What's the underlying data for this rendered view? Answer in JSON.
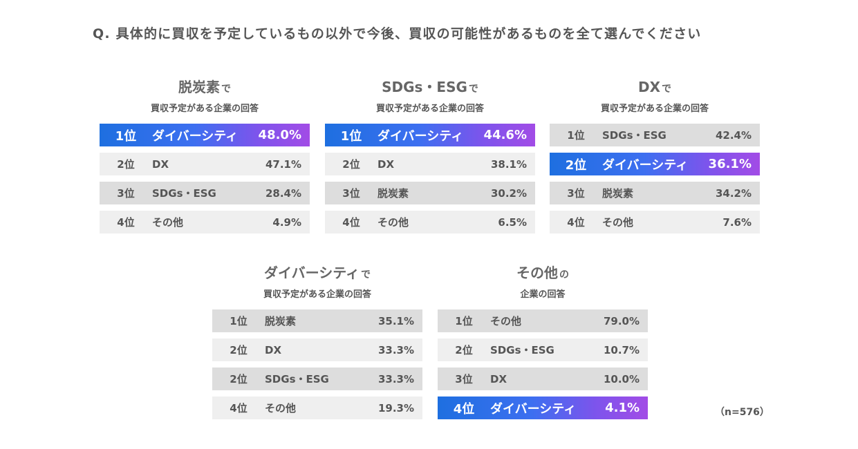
{
  "question": "Q. 具体的に買収を予定しているもの以外で今後、買収の可能性があるものを全て選んでください",
  "note": "（n=576）",
  "highlight_item": "ダイバーシティ",
  "chart_data": [
    {
      "type": "table",
      "title": "脱炭素",
      "title_suffix": "で",
      "subtitle": "買収予定がある企業の回答",
      "rows": [
        {
          "rank": "1位",
          "item": "ダイバーシティ",
          "value": 48.0,
          "display": "48.0%"
        },
        {
          "rank": "2位",
          "item": "DX",
          "value": 47.1,
          "display": "47.1%"
        },
        {
          "rank": "3位",
          "item": "SDGs・ESG",
          "value": 28.4,
          "display": "28.4%"
        },
        {
          "rank": "4位",
          "item": "その他",
          "value": 4.9,
          "display": "4.9%"
        }
      ]
    },
    {
      "type": "table",
      "title": "SDGs・ESG",
      "title_suffix": "で",
      "subtitle": "買収予定がある企業の回答",
      "rows": [
        {
          "rank": "1位",
          "item": "ダイバーシティ",
          "value": 44.6,
          "display": "44.6%"
        },
        {
          "rank": "2位",
          "item": "DX",
          "value": 38.1,
          "display": "38.1%"
        },
        {
          "rank": "3位",
          "item": "脱炭素",
          "value": 30.2,
          "display": "30.2%"
        },
        {
          "rank": "4位",
          "item": "その他",
          "value": 6.5,
          "display": "6.5%"
        }
      ]
    },
    {
      "type": "table",
      "title": "DX",
      "title_suffix": "で",
      "subtitle": "買収予定がある企業の回答",
      "rows": [
        {
          "rank": "1位",
          "item": "SDGs・ESG",
          "value": 42.4,
          "display": "42.4%"
        },
        {
          "rank": "2位",
          "item": "ダイバーシティ",
          "value": 36.1,
          "display": "36.1%"
        },
        {
          "rank": "3位",
          "item": "脱炭素",
          "value": 34.2,
          "display": "34.2%"
        },
        {
          "rank": "4位",
          "item": "その他",
          "value": 7.6,
          "display": "7.6%"
        }
      ]
    },
    {
      "type": "table",
      "title": "ダイバーシティ",
      "title_suffix": "で",
      "subtitle": "買収予定がある企業の回答",
      "rows": [
        {
          "rank": "1位",
          "item": "脱炭素",
          "value": 35.1,
          "display": "35.1%"
        },
        {
          "rank": "2位",
          "item": "DX",
          "value": 33.3,
          "display": "33.3%"
        },
        {
          "rank": "2位",
          "item": "SDGs・ESG",
          "value": 33.3,
          "display": "33.3%"
        },
        {
          "rank": "4位",
          "item": "その他",
          "value": 19.3,
          "display": "19.3%"
        }
      ]
    },
    {
      "type": "table",
      "title": "その他",
      "title_suffix": "の",
      "subtitle": "企業の回答",
      "rows": [
        {
          "rank": "1位",
          "item": "その他",
          "value": 79.0,
          "display": "79.0%"
        },
        {
          "rank": "2位",
          "item": "SDGs・ESG",
          "value": 10.7,
          "display": "10.7%"
        },
        {
          "rank": "3位",
          "item": "DX",
          "value": 10.0,
          "display": "10.0%"
        },
        {
          "rank": "4位",
          "item": "ダイバーシティ",
          "value": 4.1,
          "display": "4.1%"
        }
      ]
    }
  ]
}
